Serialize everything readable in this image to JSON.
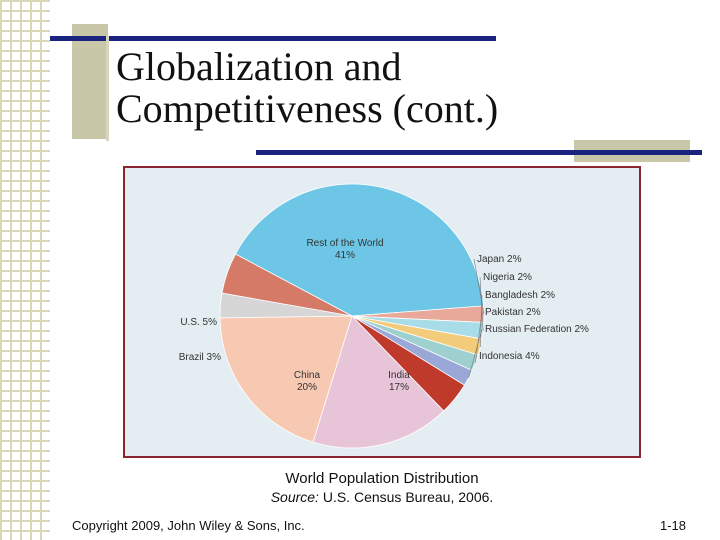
{
  "slide": {
    "title_line1": "Globalization and",
    "title_line2": "Competitiveness (cont.)",
    "caption_title": "World Population Distribution",
    "caption_source_label": "Source:",
    "caption_source_text": " U.S. Census Bureau, 2006.",
    "copyright": "Copyright 2009, John Wiley & Sons, Inc.",
    "page_number": "1-18"
  },
  "colors": {
    "title_bar": "#1a237e",
    "frame_border": "#8b2530",
    "chart_background": "#e4eef2"
  },
  "chart_data": {
    "type": "pie",
    "title": "World Population Distribution",
    "slices": [
      {
        "label": "Rest of the World",
        "value_label": "41%",
        "value": 41,
        "color": "#6ec6e6"
      },
      {
        "label": "Japan",
        "value_label": "2%",
        "value": 2,
        "color": "#e8a99a"
      },
      {
        "label": "Nigeria",
        "value_label": "2%",
        "value": 2,
        "color": "#a8dce8"
      },
      {
        "label": "Bangladesh",
        "value_label": "2%",
        "value": 2,
        "color": "#f2cc7a"
      },
      {
        "label": "Pakistan",
        "value_label": "2%",
        "value": 2,
        "color": "#9ed0cf"
      },
      {
        "label": "Russian Federation",
        "value_label": "2%",
        "value": 2,
        "color": "#9aa8d8"
      },
      {
        "label": "Indonesia",
        "value_label": "4%",
        "value": 4,
        "color": "#c03a2b"
      },
      {
        "label": "India",
        "value_label": "17%",
        "value": 17,
        "color": "#e8c4d8"
      },
      {
        "label": "China",
        "value_label": "20%",
        "value": 20,
        "color": "#f7c9b3"
      },
      {
        "label": "Brazil",
        "value_label": "3%",
        "value": 3,
        "color": "#d6d6d6"
      },
      {
        "label": "U.S.",
        "value_label": "5%",
        "value": 5,
        "color": "#d47a66"
      }
    ],
    "source": "U.S. Census Bureau, 2006."
  }
}
